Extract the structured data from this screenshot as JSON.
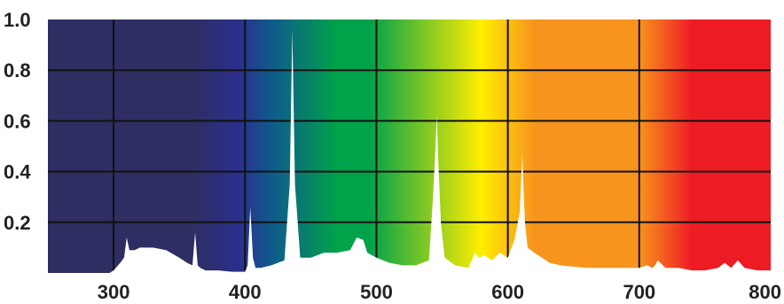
{
  "chart_data": {
    "type": "area",
    "title": "",
    "xlabel": "",
    "ylabel": "",
    "xlim": [
      250,
      800
    ],
    "ylim": [
      0,
      1.0
    ],
    "x_ticks": [
      "300",
      "400",
      "500",
      "600",
      "700",
      "800"
    ],
    "y_ticks": [
      "1.0",
      "0.8",
      "0.6",
      "0.4",
      "0.2"
    ],
    "grid": true,
    "background": "visible light spectrum gradient (violet to red)",
    "colors": {
      "uv_band": "#2f2e63",
      "violet": "#2b2f8c",
      "blue": "#0f5a8c",
      "green": "#00a24a",
      "yellow": "#ffee00",
      "orange": "#f7941d",
      "red": "#ed1c24",
      "fill": "#ffffff",
      "grid": "#111111"
    },
    "series": [
      {
        "x": [
          297,
          300,
          305,
          308,
          310,
          312,
          316,
          320,
          330,
          340,
          350,
          356,
          360,
          362,
          364,
          366,
          370,
          380,
          390,
          400,
          402,
          404,
          406,
          408,
          412,
          420,
          430,
          434,
          436,
          438,
          442,
          450,
          460,
          470,
          480,
          485,
          490,
          493,
          500,
          510,
          520,
          530,
          540,
          543,
          545,
          546,
          547,
          549,
          552,
          560,
          570,
          575,
          578,
          582,
          588,
          594,
          600,
          605,
          609,
          611,
          612,
          613,
          615,
          620,
          626,
          632,
          640,
          650,
          660,
          670,
          680,
          690,
          700,
          706,
          710,
          712,
          714,
          720,
          730,
          740,
          750,
          760,
          765,
          770,
          775,
          780,
          790,
          800
        ],
        "y": [
          0.0,
          0.01,
          0.04,
          0.06,
          0.14,
          0.09,
          0.09,
          0.1,
          0.1,
          0.09,
          0.06,
          0.04,
          0.03,
          0.16,
          0.03,
          0.02,
          0.01,
          0.01,
          0.005,
          0.005,
          0.03,
          0.26,
          0.06,
          0.02,
          0.02,
          0.03,
          0.05,
          0.35,
          0.96,
          0.35,
          0.06,
          0.06,
          0.08,
          0.08,
          0.09,
          0.14,
          0.13,
          0.08,
          0.06,
          0.04,
          0.03,
          0.03,
          0.05,
          0.3,
          0.5,
          0.62,
          0.45,
          0.2,
          0.06,
          0.03,
          0.02,
          0.08,
          0.06,
          0.07,
          0.05,
          0.08,
          0.06,
          0.13,
          0.24,
          0.47,
          0.32,
          0.2,
          0.1,
          0.08,
          0.06,
          0.04,
          0.03,
          0.025,
          0.02,
          0.02,
          0.02,
          0.02,
          0.02,
          0.03,
          0.02,
          0.03,
          0.05,
          0.02,
          0.02,
          0.01,
          0.01,
          0.02,
          0.04,
          0.02,
          0.05,
          0.02,
          0.01,
          0.01
        ]
      }
    ]
  }
}
